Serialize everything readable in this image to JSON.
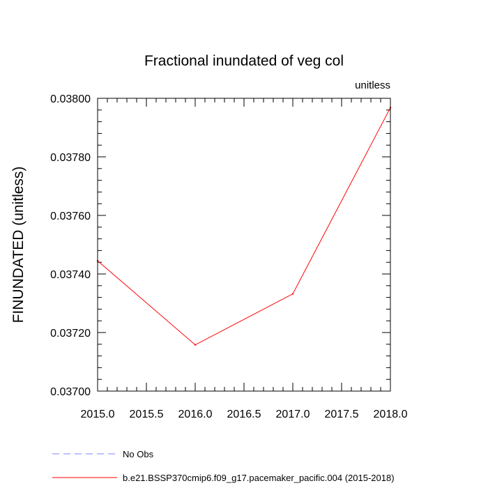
{
  "chart_data": {
    "type": "line",
    "title": "Fractional inundated of veg col",
    "units_label": "unitless",
    "xlabel": "",
    "ylabel": "FINUNDATED  (unitless)",
    "xlim": [
      2015.0,
      2018.0
    ],
    "ylim": [
      0.037,
      0.038
    ],
    "x_ticks": [
      2015.0,
      2015.5,
      2016.0,
      2016.5,
      2017.0,
      2017.5,
      2018.0
    ],
    "x_tick_labels": [
      "2015.0",
      "2015.5",
      "2016.0",
      "2016.5",
      "2017.0",
      "2017.5",
      "2018.0"
    ],
    "y_ticks": [
      0.037,
      0.0372,
      0.0374,
      0.0376,
      0.0378,
      0.038
    ],
    "y_tick_labels": [
      "0.03700",
      "0.03720",
      "0.03740",
      "0.03760",
      "0.03780",
      "0.03800"
    ],
    "grid": false,
    "legend_position": "bottom",
    "series": [
      {
        "name": "No Obs",
        "color": "#8080ff",
        "dash": "dashed",
        "x": [],
        "y": []
      },
      {
        "name": "b.e21.BSSP370cmip6.f09_g17.pacemaker_pacific.004 (2015-2018)",
        "color": "#ff0000",
        "dash": "solid",
        "x": [
          2015.0,
          2016.0,
          2017.0,
          2018.0
        ],
        "y": [
          0.037445,
          0.037158,
          0.037332,
          0.037968
        ]
      }
    ]
  }
}
